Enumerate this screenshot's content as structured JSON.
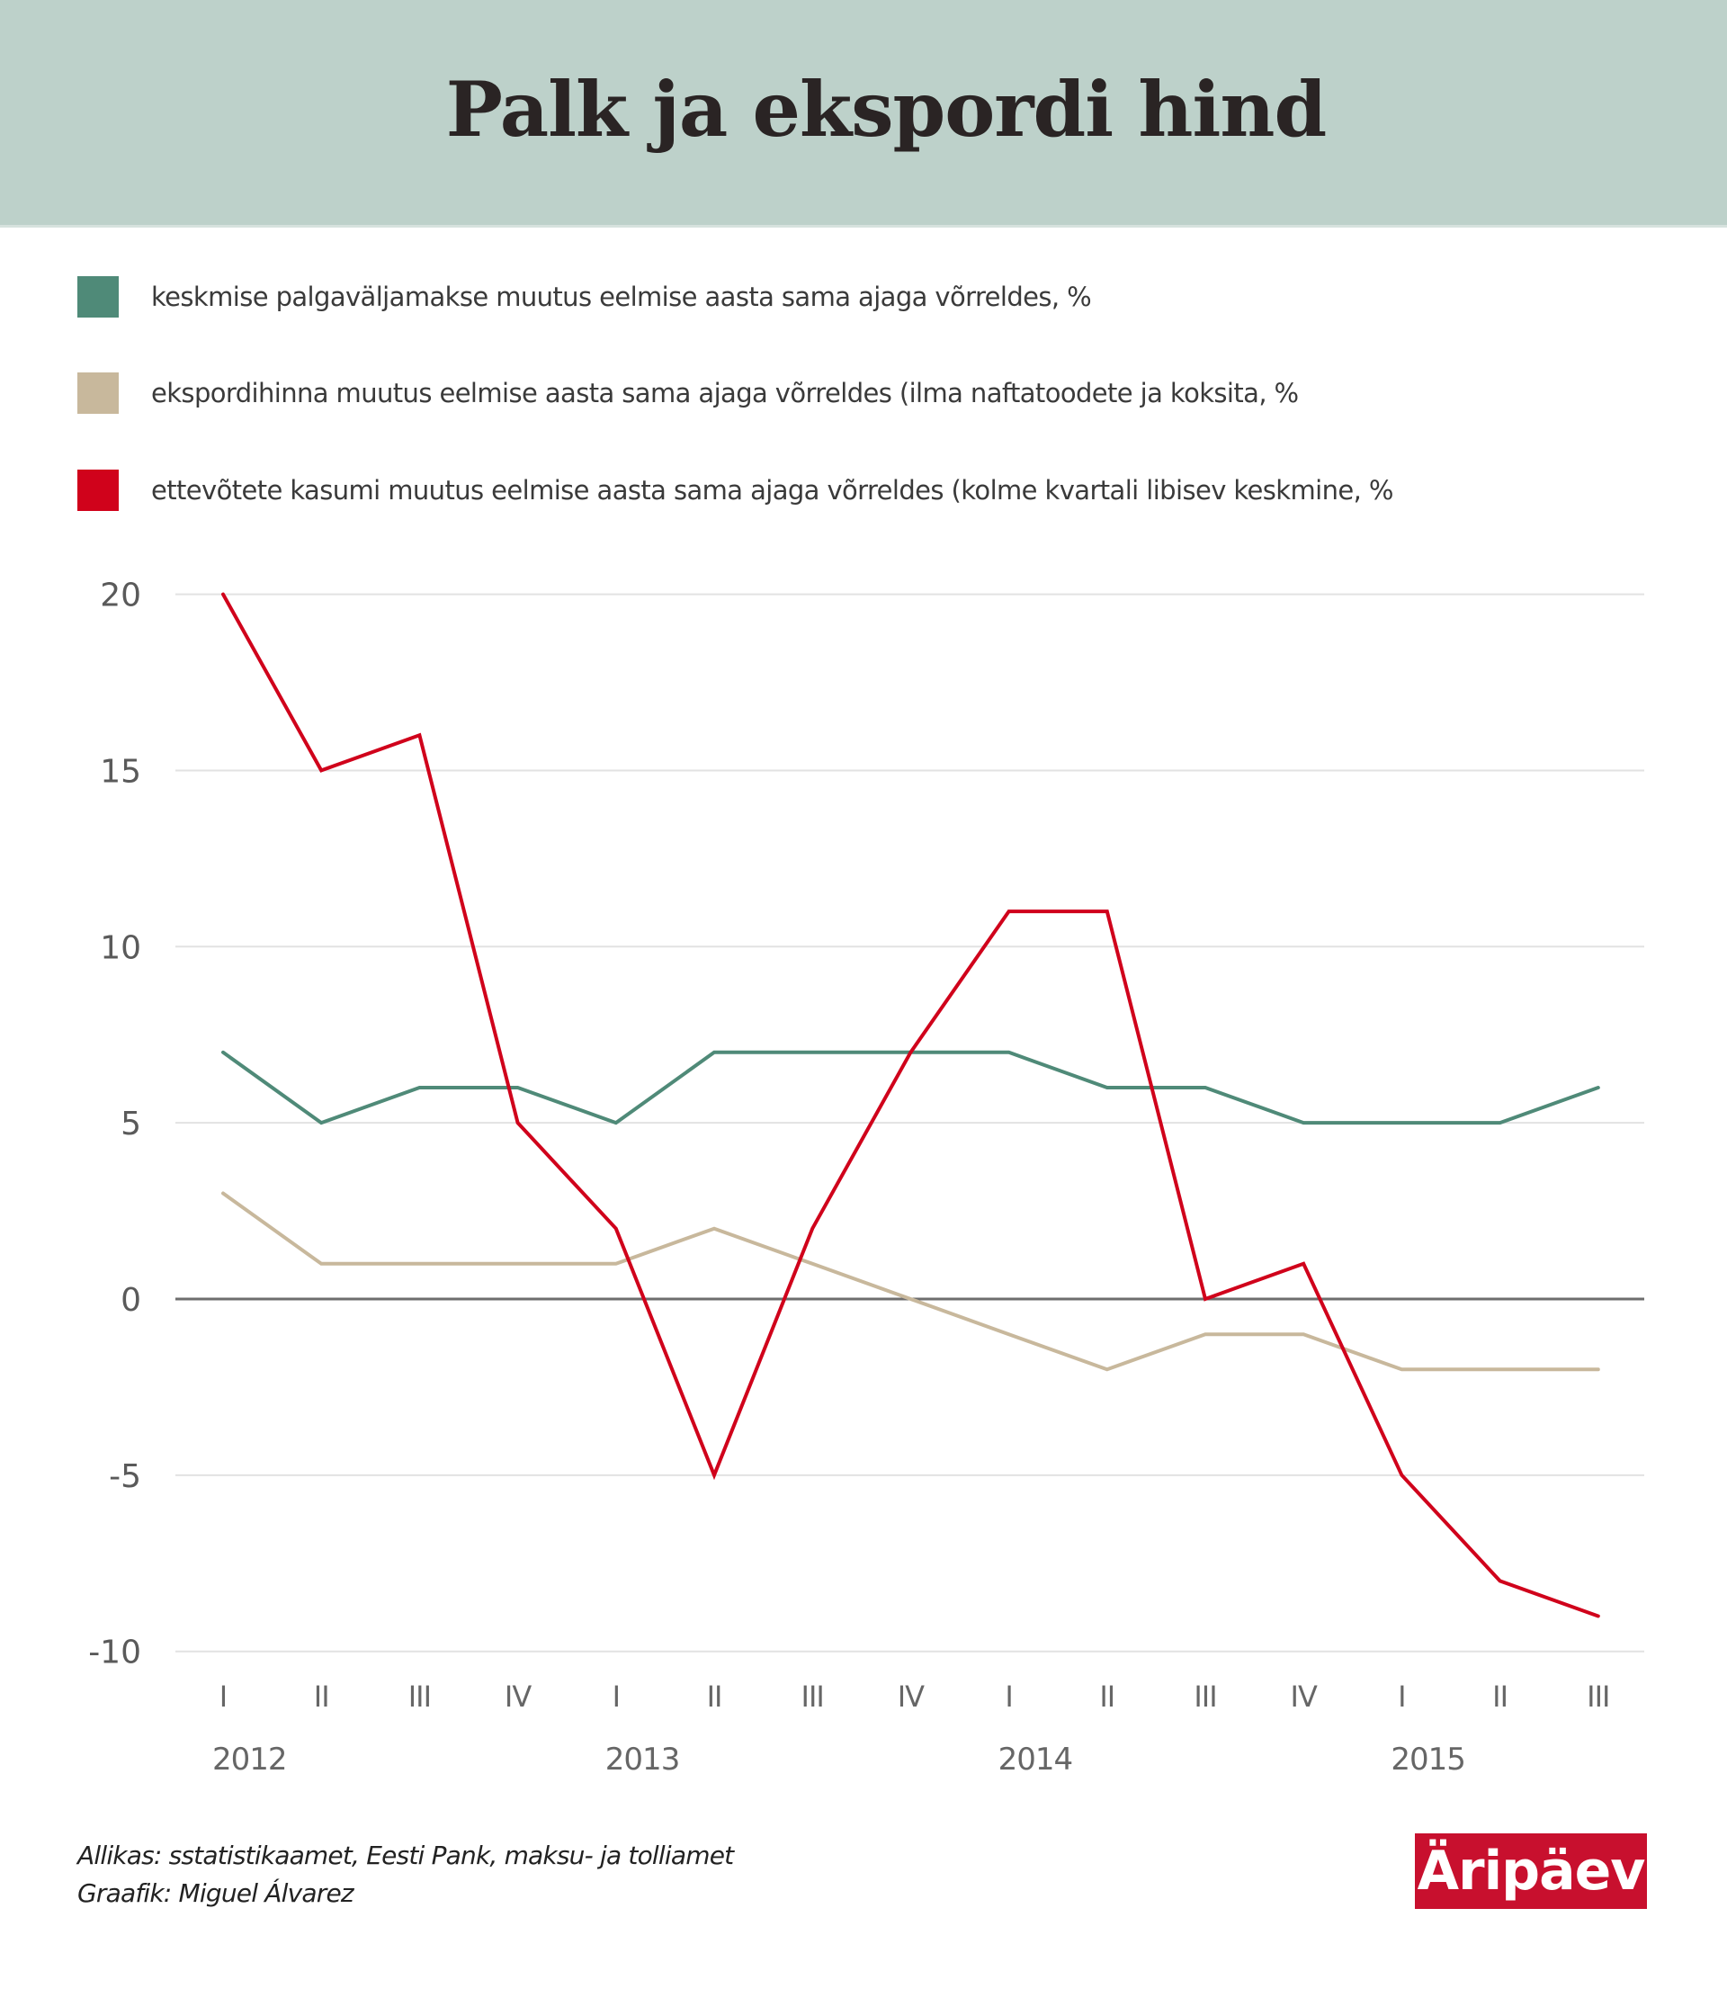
{
  "header": {
    "title": "Palk ja ekspordi hind",
    "background": "#bdd1ca"
  },
  "legend": [
    {
      "label": "keskmise palgaväljamakse muutus eelmise aasta sama ajaga võrreldes, %",
      "color": "#4f8a78"
    },
    {
      "label": "ekspordihinna muutus eelmise aasta sama ajaga võrreldes (ilma naftatoodete ja koksita, %",
      "color": "#c8b89c"
    },
    {
      "label": "ettevõtete kasumi muutus eelmise aasta sama ajaga võrreldes (kolme kvartali libisev keskmine, %",
      "color": "#d0021b"
    }
  ],
  "chart_data": {
    "type": "line",
    "title": "Palk ja ekspordi hind",
    "xlabel": "",
    "ylabel": "",
    "ylim": [
      -10,
      20
    ],
    "yticks": [
      20,
      15,
      10,
      5,
      0,
      -5,
      -10
    ],
    "grid": true,
    "legend_position": "top-left",
    "categories": [
      "I",
      "II",
      "III",
      "IV",
      "I",
      "II",
      "III",
      "IV",
      "I",
      "II",
      "III",
      "IV",
      "I",
      "II",
      "III"
    ],
    "year_labels": [
      {
        "label": "2012",
        "start_index": 0
      },
      {
        "label": "2013",
        "start_index": 4
      },
      {
        "label": "2014",
        "start_index": 8
      },
      {
        "label": "2015",
        "start_index": 12
      }
    ],
    "series": [
      {
        "name": "keskmise palgaväljamakse muutus eelmise aasta sama ajaga võrreldes, %",
        "color": "#4f8a78",
        "values": [
          7,
          5,
          6,
          6,
          5,
          7,
          7,
          7,
          7,
          6,
          6,
          5,
          5,
          5,
          6
        ]
      },
      {
        "name": "ekspordihinna muutus eelmise aasta sama ajaga võrreldes (ilma naftatoodete ja koksita, %",
        "color": "#c8b89c",
        "values": [
          3,
          1,
          1,
          1,
          1,
          2,
          1,
          0,
          -1,
          -2,
          -1,
          -1,
          -2,
          -2,
          -2
        ]
      },
      {
        "name": "ettevõtete kasumi muutus eelmise aasta sama ajaga võrreldes (kolme kvartali libisev keskmine, %",
        "color": "#d0021b",
        "values": [
          20,
          15,
          16,
          5,
          2,
          -5,
          2,
          7,
          11,
          11,
          0,
          1,
          -5,
          -8,
          -9
        ]
      }
    ]
  },
  "footer": {
    "source": "Allikas:  sstatistikaamet, Eesti Pank, maksu- ja tolliamet",
    "credit": "Graafik:  Miguel  Álvarez"
  },
  "logo": {
    "text": "Äripäev",
    "color": "#c8102e"
  }
}
